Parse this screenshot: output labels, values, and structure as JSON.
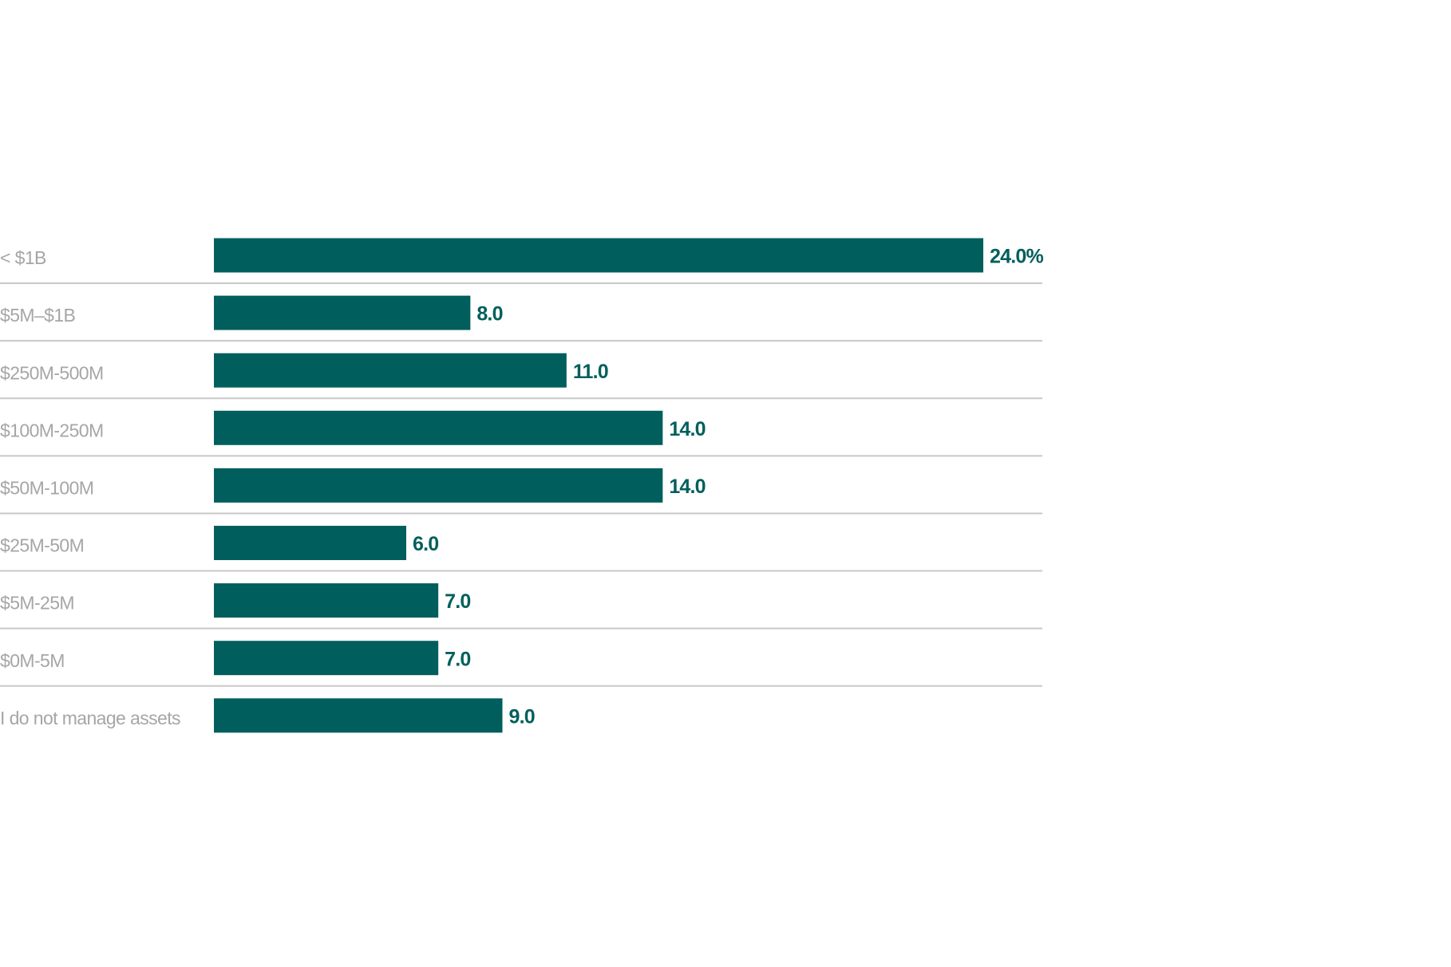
{
  "chart_data": {
    "type": "bar",
    "orientation": "horizontal",
    "color": "#005f5c",
    "categories": [
      "< $1B",
      "$5M–$1B",
      "$250M-500M",
      "$100M-250M",
      "$50M-100M",
      "$25M-50M",
      "$5M-25M",
      "$0M-5M",
      "I do not manage assets"
    ],
    "values": [
      24.0,
      8.0,
      11.0,
      14.0,
      14.0,
      6.0,
      7.0,
      7.0,
      9.0
    ],
    "value_labels": [
      "24.0%",
      "8.0",
      "11.0",
      "14.0",
      "14.0",
      "6.0",
      "7.0",
      "7.0",
      "9.0"
    ]
  }
}
